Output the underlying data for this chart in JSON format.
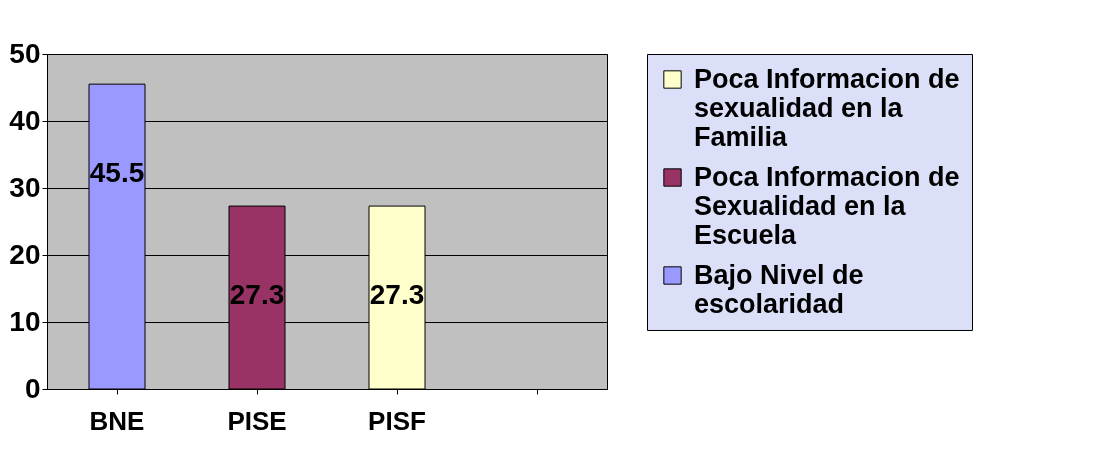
{
  "chart_data": {
    "type": "bar",
    "categories": [
      "BNE",
      "PISE",
      "PISF",
      null
    ],
    "series": [
      {
        "name": "Poca Informacion de sexualidad en la Familia",
        "color": "#ffffcc",
        "values": [
          null,
          null,
          27.3,
          null
        ]
      },
      {
        "name": "Poca Informacion de Sexualidad en la Escuela",
        "color": "#993366",
        "values": [
          null,
          27.3,
          null,
          null
        ]
      },
      {
        "name": "Bajo Nivel de escolaridad",
        "color": "#9999ff",
        "values": [
          45.5,
          null,
          null,
          null
        ]
      }
    ],
    "ylim": [
      0,
      50
    ],
    "yticks": [
      0,
      10,
      20,
      30,
      40,
      50
    ],
    "grid": "y",
    "legend": "right",
    "data_labels": true
  }
}
